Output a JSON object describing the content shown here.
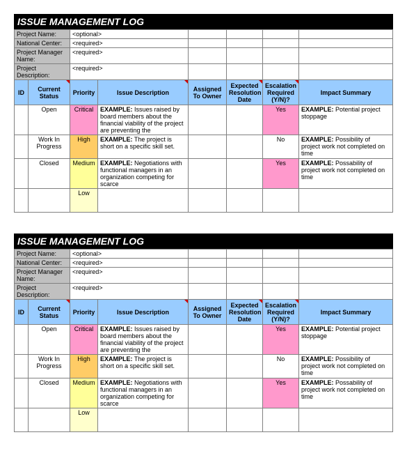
{
  "title": "ISSUE MANAGEMENT LOG",
  "meta": [
    {
      "label": "Project Name:",
      "value": "<optional>"
    },
    {
      "label": "National Center:",
      "value": "<required>"
    },
    {
      "label": "Project Manager Name:",
      "value": "<required>"
    },
    {
      "label": "Project Description:",
      "value": "<required>"
    }
  ],
  "columns": [
    "ID",
    "Current Status",
    "Priority",
    "Issue Description",
    "Assigned To Owner",
    "Expected Resolution Date",
    "Escalation Required (Y/N)?",
    "Impact Summary"
  ],
  "col_widths": [
    "20px",
    "60px",
    "40px",
    "130px",
    "55px",
    "52px",
    "52px",
    "auto"
  ],
  "priority_colors": {
    "Critical": "#ff99cc",
    "High": "#ffcc66",
    "Medium": "#ffff99",
    "Low": "#ffffcc"
  },
  "escalation_yes_color": "#ff99cc",
  "rows": [
    {
      "id": "",
      "status": "Open",
      "priority": "Critical",
      "desc": "EXAMPLE: Issues raised by board members about the financial viability of the project are preventing the",
      "owner": "",
      "date": "",
      "escalation": "Yes",
      "impact": "EXAMPLE: Potential project stoppage"
    },
    {
      "id": "",
      "status": "Work In Progress",
      "priority": "High",
      "desc": "EXAMPLE: The project is short on a specific skill set.",
      "owner": "",
      "date": "",
      "escalation": "No",
      "impact": "EXAMPLE: Possibility of project work not completed on time"
    },
    {
      "id": "",
      "status": "Closed",
      "priority": "Medium",
      "desc": "EXAMPLE: Negotiations with functional managers in an organization competing for scarce",
      "owner": "",
      "date": "",
      "escalation": "Yes",
      "impact": "EXAMPLE: Possability of project work not completed on time"
    },
    {
      "id": "",
      "status": "",
      "priority": "Low",
      "desc": "",
      "owner": "",
      "date": "",
      "escalation": "",
      "impact": ""
    }
  ]
}
